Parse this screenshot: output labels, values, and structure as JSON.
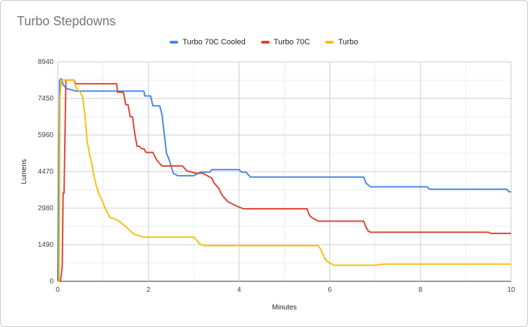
{
  "chart_data": {
    "type": "line",
    "title": "Turbo Stepdowns",
    "xlabel": "Minutes",
    "ylabel": "Lumens",
    "xlim": [
      0,
      10
    ],
    "ylim": [
      0,
      8940
    ],
    "x_ticks": [
      0,
      2,
      4,
      6,
      8,
      10
    ],
    "y_ticks": [
      0,
      1490,
      2980,
      4470,
      5960,
      7450,
      8940
    ],
    "grid": true,
    "legend_position": "top",
    "series": [
      {
        "name": "Turbo 70C Cooled",
        "color": "#4a86e8",
        "points": [
          [
            0,
            0
          ],
          [
            0.04,
            8200
          ],
          [
            0.08,
            8250
          ],
          [
            0.12,
            8000
          ],
          [
            0.2,
            7850
          ],
          [
            0.4,
            7750
          ],
          [
            1.0,
            7750
          ],
          [
            1.9,
            7750
          ],
          [
            1.92,
            7550
          ],
          [
            2.05,
            7550
          ],
          [
            2.1,
            7150
          ],
          [
            2.25,
            7150
          ],
          [
            2.3,
            6800
          ],
          [
            2.35,
            6000
          ],
          [
            2.4,
            5200
          ],
          [
            2.45,
            5000
          ],
          [
            2.5,
            4700
          ],
          [
            2.55,
            4400
          ],
          [
            2.65,
            4300
          ],
          [
            3.0,
            4300
          ],
          [
            3.15,
            4450
          ],
          [
            3.35,
            4450
          ],
          [
            3.4,
            4550
          ],
          [
            4.0,
            4550
          ],
          [
            4.05,
            4450
          ],
          [
            4.15,
            4450
          ],
          [
            4.25,
            4250
          ],
          [
            5.0,
            4250
          ],
          [
            6.0,
            4250
          ],
          [
            6.75,
            4250
          ],
          [
            6.8,
            4000
          ],
          [
            6.9,
            3850
          ],
          [
            8.15,
            3850
          ],
          [
            8.2,
            3750
          ],
          [
            9.9,
            3750
          ],
          [
            9.95,
            3650
          ],
          [
            10,
            3650
          ]
        ]
      },
      {
        "name": "Turbo 70C",
        "color": "#db4437",
        "points": [
          [
            0,
            0
          ],
          [
            0.06,
            0
          ],
          [
            0.1,
            600
          ],
          [
            0.12,
            3600
          ],
          [
            0.14,
            3600
          ],
          [
            0.18,
            8200
          ],
          [
            0.35,
            8200
          ],
          [
            0.4,
            8050
          ],
          [
            0.8,
            8050
          ],
          [
            1.3,
            8050
          ],
          [
            1.32,
            7700
          ],
          [
            1.45,
            7700
          ],
          [
            1.5,
            7200
          ],
          [
            1.55,
            7200
          ],
          [
            1.6,
            6700
          ],
          [
            1.65,
            6700
          ],
          [
            1.7,
            6000
          ],
          [
            1.75,
            5500
          ],
          [
            1.8,
            5500
          ],
          [
            1.85,
            5400
          ],
          [
            1.9,
            5400
          ],
          [
            1.95,
            5250
          ],
          [
            2.1,
            5250
          ],
          [
            2.15,
            5050
          ],
          [
            2.2,
            4900
          ],
          [
            2.25,
            4800
          ],
          [
            2.3,
            4700
          ],
          [
            2.75,
            4700
          ],
          [
            2.8,
            4600
          ],
          [
            2.85,
            4500
          ],
          [
            3.05,
            4400
          ],
          [
            3.2,
            4400
          ],
          [
            3.3,
            4300
          ],
          [
            3.4,
            4200
          ],
          [
            3.45,
            4000
          ],
          [
            3.55,
            3800
          ],
          [
            3.6,
            3600
          ],
          [
            3.65,
            3450
          ],
          [
            3.75,
            3250
          ],
          [
            3.9,
            3100
          ],
          [
            4.1,
            2950
          ],
          [
            5.0,
            2950
          ],
          [
            5.5,
            2950
          ],
          [
            5.55,
            2700
          ],
          [
            5.6,
            2600
          ],
          [
            5.75,
            2450
          ],
          [
            6.0,
            2450
          ],
          [
            6.75,
            2450
          ],
          [
            6.8,
            2200
          ],
          [
            6.85,
            2050
          ],
          [
            6.9,
            2000
          ],
          [
            8.0,
            2000
          ],
          [
            9.5,
            2000
          ],
          [
            9.55,
            1950
          ],
          [
            10,
            1950
          ]
        ]
      },
      {
        "name": "Turbo",
        "color": "#f4c20d",
        "points": [
          [
            0,
            0
          ],
          [
            0.03,
            0
          ],
          [
            0.05,
            7500
          ],
          [
            0.08,
            8200
          ],
          [
            0.2,
            8200
          ],
          [
            0.35,
            8200
          ],
          [
            0.4,
            7900
          ],
          [
            0.5,
            7700
          ],
          [
            0.55,
            7500
          ],
          [
            0.6,
            6800
          ],
          [
            0.65,
            5700
          ],
          [
            0.7,
            5200
          ],
          [
            0.75,
            4800
          ],
          [
            0.8,
            4300
          ],
          [
            0.85,
            3900
          ],
          [
            0.9,
            3600
          ],
          [
            0.95,
            3400
          ],
          [
            1.0,
            3200
          ],
          [
            1.05,
            2950
          ],
          [
            1.1,
            2800
          ],
          [
            1.15,
            2600
          ],
          [
            1.25,
            2550
          ],
          [
            1.35,
            2450
          ],
          [
            1.45,
            2300
          ],
          [
            1.55,
            2150
          ],
          [
            1.6,
            2050
          ],
          [
            1.7,
            1900
          ],
          [
            1.8,
            1850
          ],
          [
            1.9,
            1800
          ],
          [
            2.5,
            1800
          ],
          [
            3.0,
            1800
          ],
          [
            3.05,
            1700
          ],
          [
            3.15,
            1500
          ],
          [
            3.25,
            1450
          ],
          [
            4.0,
            1450
          ],
          [
            5.0,
            1450
          ],
          [
            5.75,
            1450
          ],
          [
            5.8,
            1300
          ],
          [
            5.85,
            1100
          ],
          [
            5.9,
            900
          ],
          [
            5.95,
            800
          ],
          [
            6.05,
            700
          ],
          [
            6.1,
            650
          ],
          [
            7.0,
            650
          ],
          [
            7.2,
            700
          ],
          [
            8.0,
            700
          ],
          [
            10,
            700
          ]
        ]
      }
    ]
  }
}
